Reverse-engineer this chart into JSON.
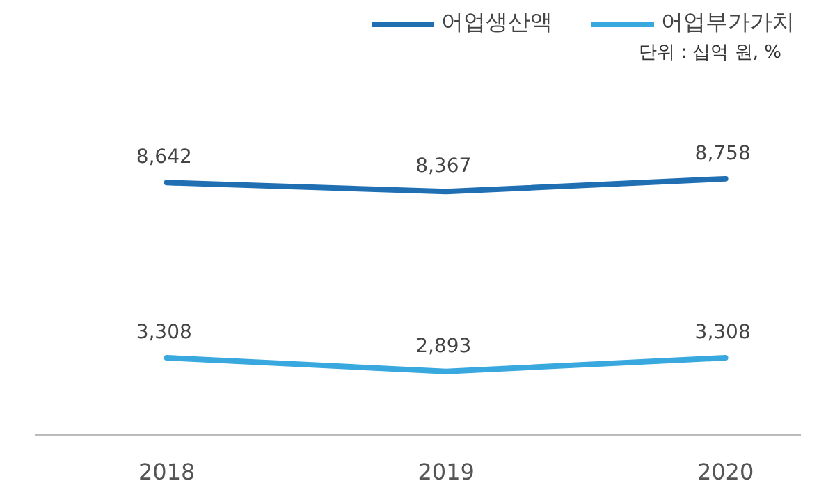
{
  "chart_data": {
    "type": "line",
    "categories": [
      "2018",
      "2019",
      "2020"
    ],
    "series": [
      {
        "name": "어업생산액",
        "color": "#1f6fb2",
        "values": [
          8642,
          8367,
          8758
        ],
        "value_labels": [
          "8,642",
          "8,367",
          "8,758"
        ]
      },
      {
        "name": "어업부가가치",
        "color": "#38a8df",
        "values": [
          3308,
          2893,
          3308
        ],
        "value_labels": [
          "3,308",
          "2,893",
          "3,308"
        ]
      }
    ],
    "annotations": [
      "단위 : 십억 원, %"
    ],
    "legend": "top right",
    "grid": false,
    "marker": "none",
    "line_style": "solid",
    "tick_labels": "x"
  }
}
